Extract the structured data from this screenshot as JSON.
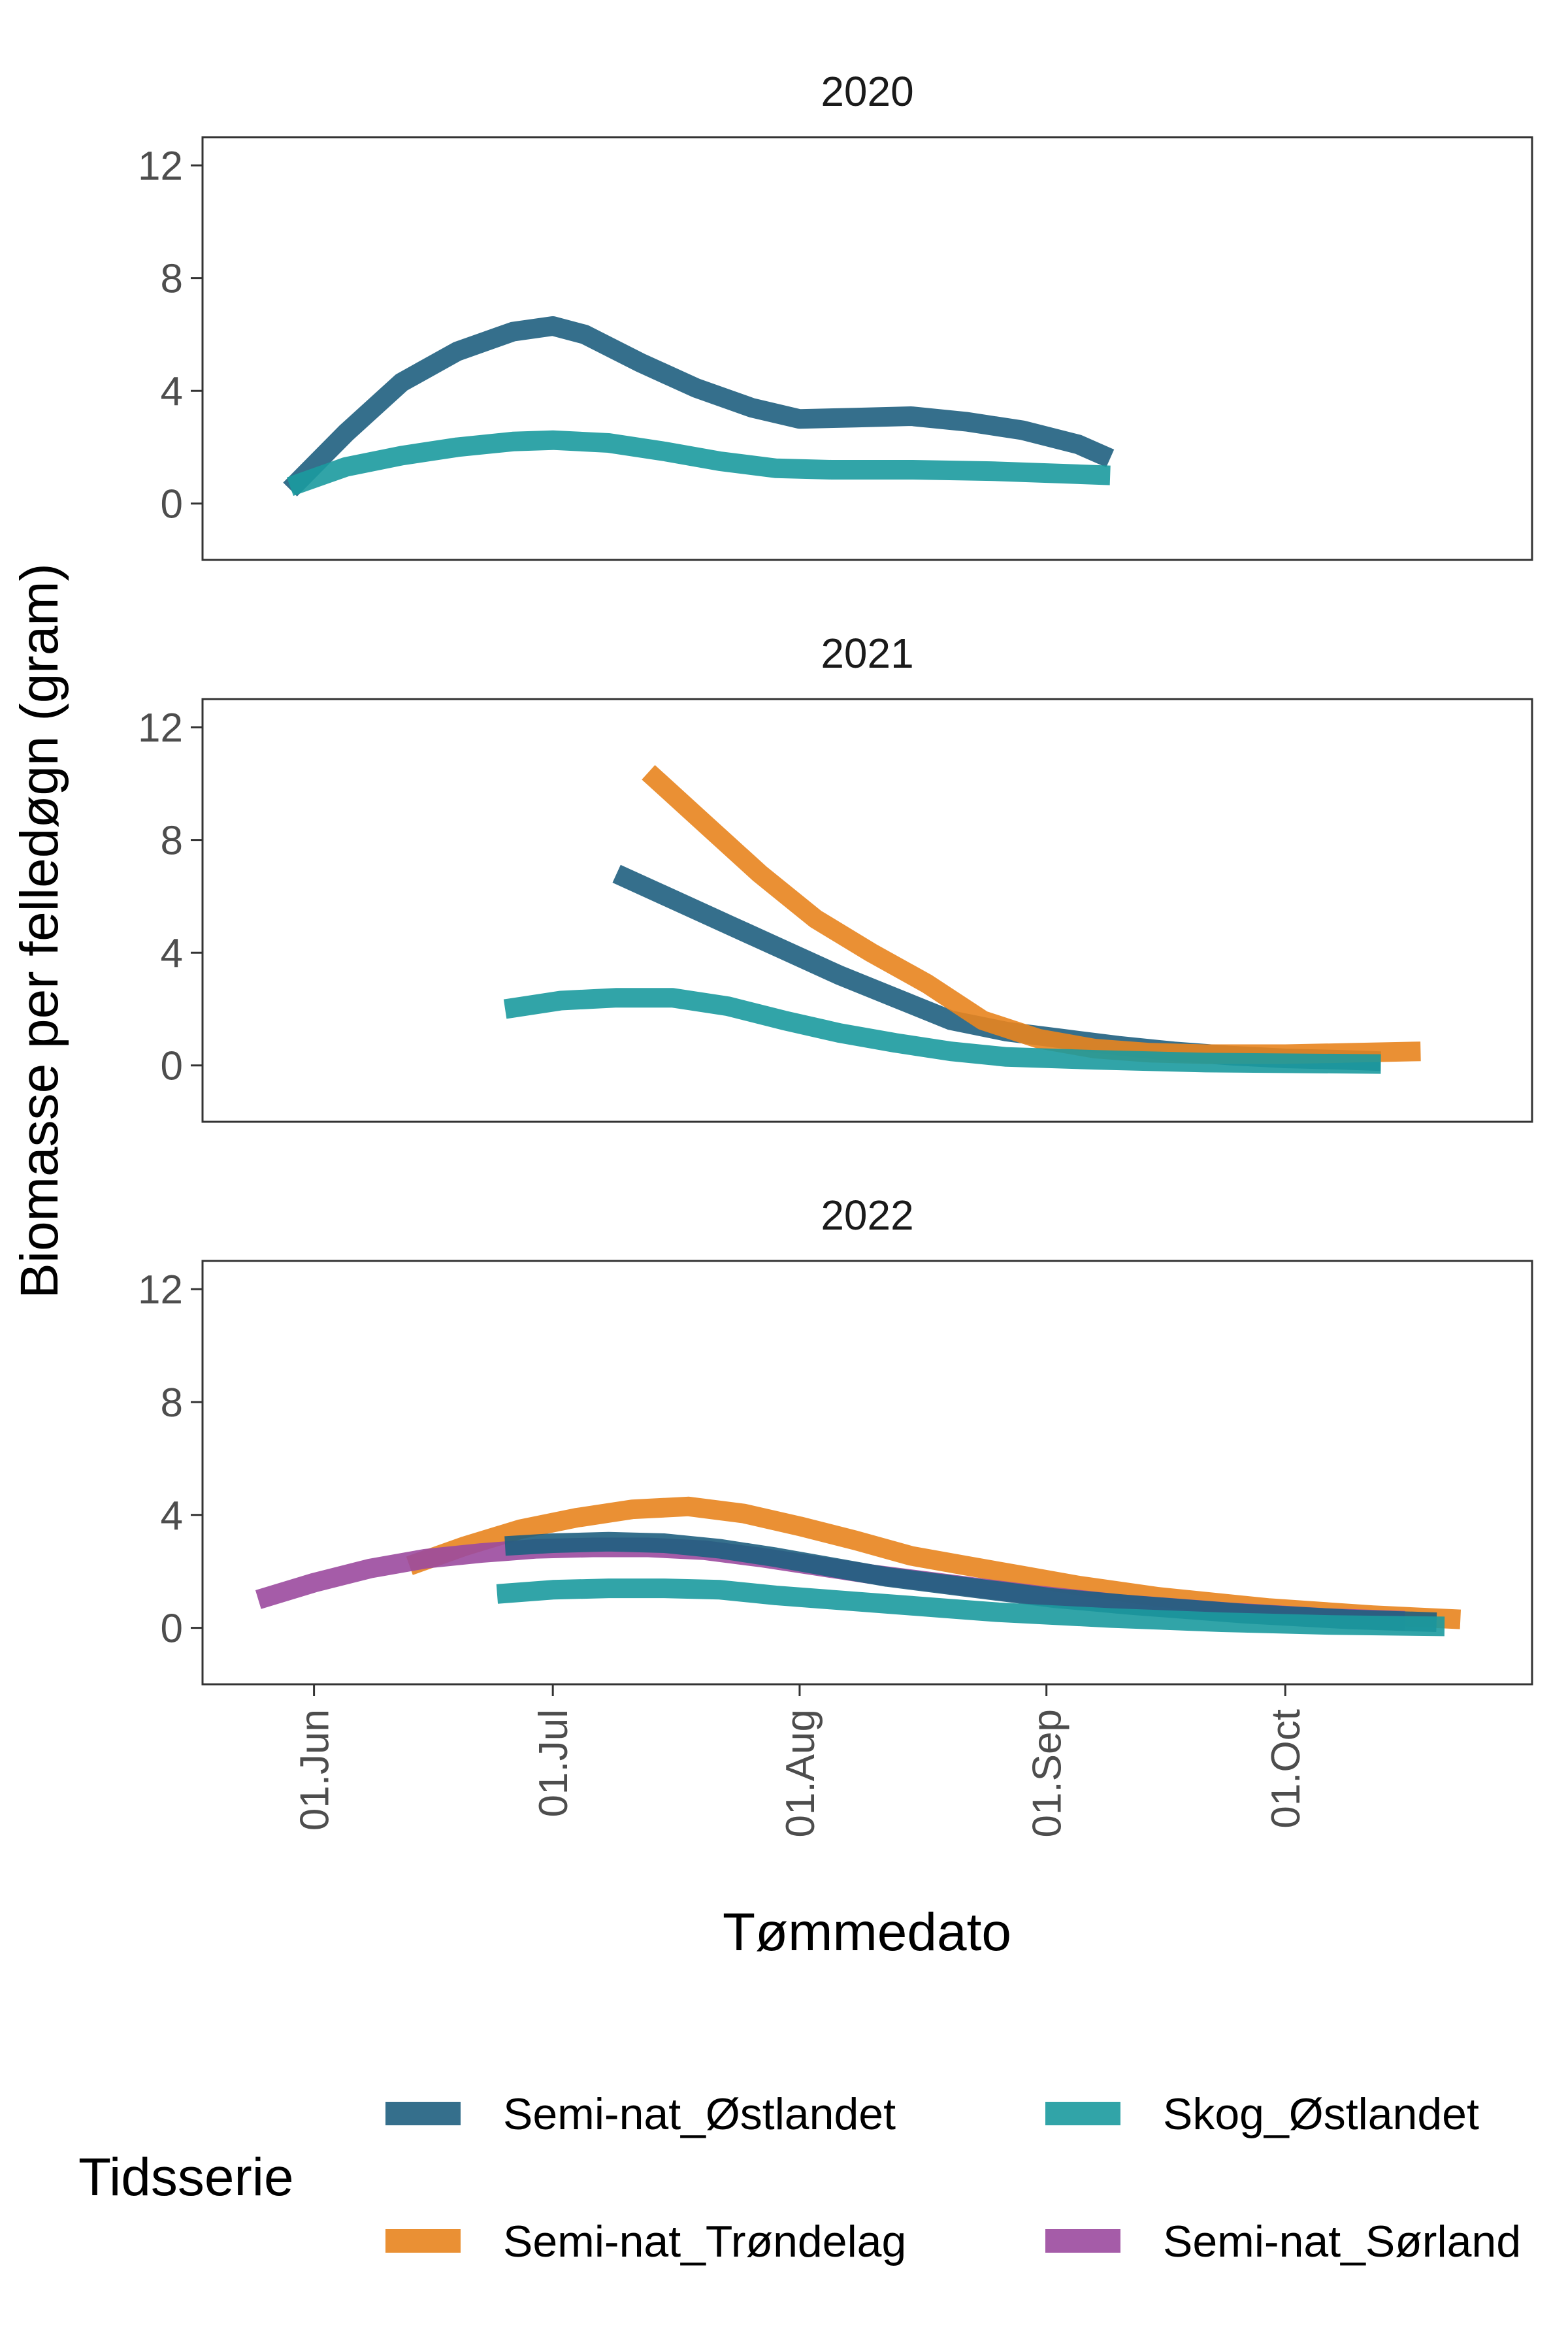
{
  "chart_data": {
    "type": "line",
    "ylabel": "Biomasse per felledøgn (gram)",
    "xlabel": "Tømmedato",
    "ylim": [
      -2,
      13
    ],
    "y_ticks": [
      0,
      4,
      8,
      12
    ],
    "x_range": [
      "2020-05-18",
      "2020-11-01"
    ],
    "x_ticks": [
      {
        "date": "2020-06-01",
        "label": "01.Jun"
      },
      {
        "date": "2020-07-01",
        "label": "01.Jul"
      },
      {
        "date": "2020-08-01",
        "label": "01.Aug"
      },
      {
        "date": "2020-09-01",
        "label": "01.Sep"
      },
      {
        "date": "2020-10-01",
        "label": "01.Oct"
      }
    ],
    "grid": false,
    "legend": {
      "title": "Tidsserie",
      "position": "bottom",
      "entries": [
        {
          "name": "Semi-nat_Østlandet",
          "color": "#1F5F7F"
        },
        {
          "name": "Skog_Østlandet",
          "color": "#1B9A9E"
        },
        {
          "name": "Semi-nat_Trøndelag",
          "color": "#E8841E"
        },
        {
          "name": "Semi-nat_Sørland",
          "color": "#9B4A9E"
        }
      ]
    },
    "panels": [
      {
        "title": "2020",
        "series": [
          {
            "name": "Semi-nat_Østlandet",
            "color": "#1F5F7F",
            "points": [
              [
                "2020-05-29",
                0.5
              ],
              [
                "2020-06-05",
                2.5
              ],
              [
                "2020-06-12",
                4.3
              ],
              [
                "2020-06-19",
                5.4
              ],
              [
                "2020-06-26",
                6.1
              ],
              [
                "2020-07-01",
                6.3
              ],
              [
                "2020-07-05",
                6.0
              ],
              [
                "2020-07-12",
                5.0
              ],
              [
                "2020-07-19",
                4.1
              ],
              [
                "2020-07-26",
                3.4
              ],
              [
                "2020-08-01",
                3.0
              ],
              [
                "2020-08-08",
                3.05
              ],
              [
                "2020-08-15",
                3.1
              ],
              [
                "2020-08-22",
                2.9
              ],
              [
                "2020-08-29",
                2.6
              ],
              [
                "2020-09-05",
                2.1
              ],
              [
                "2020-09-09",
                1.6
              ]
            ]
          },
          {
            "name": "Skog_Østlandet",
            "color": "#1B9A9E",
            "points": [
              [
                "2020-05-29",
                0.6
              ],
              [
                "2020-06-05",
                1.3
              ],
              [
                "2020-06-12",
                1.7
              ],
              [
                "2020-06-19",
                2.0
              ],
              [
                "2020-06-26",
                2.2
              ],
              [
                "2020-07-01",
                2.25
              ],
              [
                "2020-07-08",
                2.15
              ],
              [
                "2020-07-15",
                1.85
              ],
              [
                "2020-07-22",
                1.5
              ],
              [
                "2020-07-29",
                1.25
              ],
              [
                "2020-08-05",
                1.2
              ],
              [
                "2020-08-15",
                1.2
              ],
              [
                "2020-08-25",
                1.15
              ],
              [
                "2020-09-09",
                1.0
              ]
            ]
          }
        ]
      },
      {
        "title": "2021",
        "series": [
          {
            "name": "Semi-nat_Østlandet",
            "color": "#1F5F7F",
            "points": [
              [
                "2021-07-09",
                6.8
              ],
              [
                "2021-07-16",
                5.9
              ],
              [
                "2021-07-23",
                5.0
              ],
              [
                "2021-07-30",
                4.1
              ],
              [
                "2021-08-06",
                3.2
              ],
              [
                "2021-08-13",
                2.4
              ],
              [
                "2021-08-20",
                1.6
              ],
              [
                "2021-08-27",
                1.2
              ],
              [
                "2021-09-03",
                0.95
              ],
              [
                "2021-09-10",
                0.7
              ],
              [
                "2021-09-17",
                0.5
              ],
              [
                "2021-09-24",
                0.35
              ],
              [
                "2021-10-01",
                0.25
              ],
              [
                "2021-10-08",
                0.2
              ],
              [
                "2021-10-13",
                0.15
              ]
            ]
          },
          {
            "name": "Semi-nat_Trøndelag",
            "color": "#E8841E",
            "points": [
              [
                "2021-07-13",
                10.4
              ],
              [
                "2021-07-20",
                8.6
              ],
              [
                "2021-07-27",
                6.8
              ],
              [
                "2021-08-03",
                5.2
              ],
              [
                "2021-08-10",
                4.0
              ],
              [
                "2021-08-17",
                2.9
              ],
              [
                "2021-08-24",
                1.6
              ],
              [
                "2021-08-31",
                0.95
              ],
              [
                "2021-09-07",
                0.6
              ],
              [
                "2021-09-14",
                0.45
              ],
              [
                "2021-09-21",
                0.4
              ],
              [
                "2021-10-01",
                0.4
              ],
              [
                "2021-10-10",
                0.45
              ],
              [
                "2021-10-18",
                0.5
              ]
            ]
          },
          {
            "name": "Skog_Østlandet",
            "color": "#1B9A9E",
            "points": [
              [
                "2021-06-25",
                2.0
              ],
              [
                "2021-07-02",
                2.3
              ],
              [
                "2021-07-09",
                2.4
              ],
              [
                "2021-07-16",
                2.4
              ],
              [
                "2021-07-23",
                2.1
              ],
              [
                "2021-07-30",
                1.6
              ],
              [
                "2021-08-06",
                1.15
              ],
              [
                "2021-08-13",
                0.8
              ],
              [
                "2021-08-20",
                0.5
              ],
              [
                "2021-08-27",
                0.3
              ],
              [
                "2021-09-07",
                0.2
              ],
              [
                "2021-09-21",
                0.1
              ],
              [
                "2021-10-13",
                0.05
              ]
            ]
          }
        ]
      },
      {
        "title": "2022",
        "series": [
          {
            "name": "Semi-nat_Trøndelag",
            "color": "#E8841E",
            "points": [
              [
                "2022-06-13",
                2.2
              ],
              [
                "2022-06-20",
                2.9
              ],
              [
                "2022-06-27",
                3.5
              ],
              [
                "2022-07-04",
                3.9
              ],
              [
                "2022-07-11",
                4.2
              ],
              [
                "2022-07-18",
                4.3
              ],
              [
                "2022-07-25",
                4.05
              ],
              [
                "2022-08-01",
                3.6
              ],
              [
                "2022-08-08",
                3.1
              ],
              [
                "2022-08-15",
                2.55
              ],
              [
                "2022-08-22",
                2.2
              ],
              [
                "2022-08-29",
                1.85
              ],
              [
                "2022-09-05",
                1.5
              ],
              [
                "2022-09-15",
                1.1
              ],
              [
                "2022-09-29",
                0.7
              ],
              [
                "2022-10-12",
                0.45
              ],
              [
                "2022-10-23",
                0.3
              ]
            ]
          },
          {
            "name": "Semi-nat_Sørland",
            "color": "#9B4A9E",
            "points": [
              [
                "2022-05-25",
                1.0
              ],
              [
                "2022-06-01",
                1.6
              ],
              [
                "2022-06-08",
                2.1
              ],
              [
                "2022-06-15",
                2.45
              ],
              [
                "2022-06-22",
                2.65
              ],
              [
                "2022-06-29",
                2.8
              ],
              [
                "2022-07-06",
                2.85
              ],
              [
                "2022-07-13",
                2.85
              ],
              [
                "2022-07-20",
                2.75
              ],
              [
                "2022-07-27",
                2.5
              ],
              [
                "2022-08-03",
                2.2
              ],
              [
                "2022-08-10",
                1.9
              ],
              [
                "2022-08-17",
                1.65
              ],
              [
                "2022-08-24",
                1.4
              ],
              [
                "2022-08-31",
                1.15
              ],
              [
                "2022-09-10",
                0.85
              ],
              [
                "2022-09-24",
                0.55
              ],
              [
                "2022-10-06",
                0.35
              ],
              [
                "2022-10-16",
                0.25
              ]
            ]
          },
          {
            "name": "Semi-nat_Østlandet",
            "color": "#1F5F7F",
            "points": [
              [
                "2022-06-25",
                2.9
              ],
              [
                "2022-07-01",
                3.0
              ],
              [
                "2022-07-08",
                3.05
              ],
              [
                "2022-07-15",
                3.0
              ],
              [
                "2022-07-22",
                2.8
              ],
              [
                "2022-07-29",
                2.5
              ],
              [
                "2022-08-05",
                2.15
              ],
              [
                "2022-08-12",
                1.8
              ],
              [
                "2022-08-19",
                1.55
              ],
              [
                "2022-08-26",
                1.3
              ],
              [
                "2022-09-02",
                1.05
              ],
              [
                "2022-09-12",
                0.8
              ],
              [
                "2022-09-26",
                0.5
              ],
              [
                "2022-10-09",
                0.3
              ],
              [
                "2022-10-20",
                0.2
              ]
            ]
          },
          {
            "name": "Skog_Østlandet",
            "color": "#1B9A9E",
            "points": [
              [
                "2022-06-24",
                1.2
              ],
              [
                "2022-07-01",
                1.35
              ],
              [
                "2022-07-08",
                1.4
              ],
              [
                "2022-07-15",
                1.4
              ],
              [
                "2022-07-22",
                1.35
              ],
              [
                "2022-07-29",
                1.15
              ],
              [
                "2022-08-05",
                1.0
              ],
              [
                "2022-08-12",
                0.85
              ],
              [
                "2022-08-19",
                0.7
              ],
              [
                "2022-08-26",
                0.55
              ],
              [
                "2022-09-09",
                0.35
              ],
              [
                "2022-09-23",
                0.2
              ],
              [
                "2022-10-07",
                0.1
              ],
              [
                "2022-10-21",
                0.05
              ]
            ]
          }
        ]
      }
    ]
  }
}
